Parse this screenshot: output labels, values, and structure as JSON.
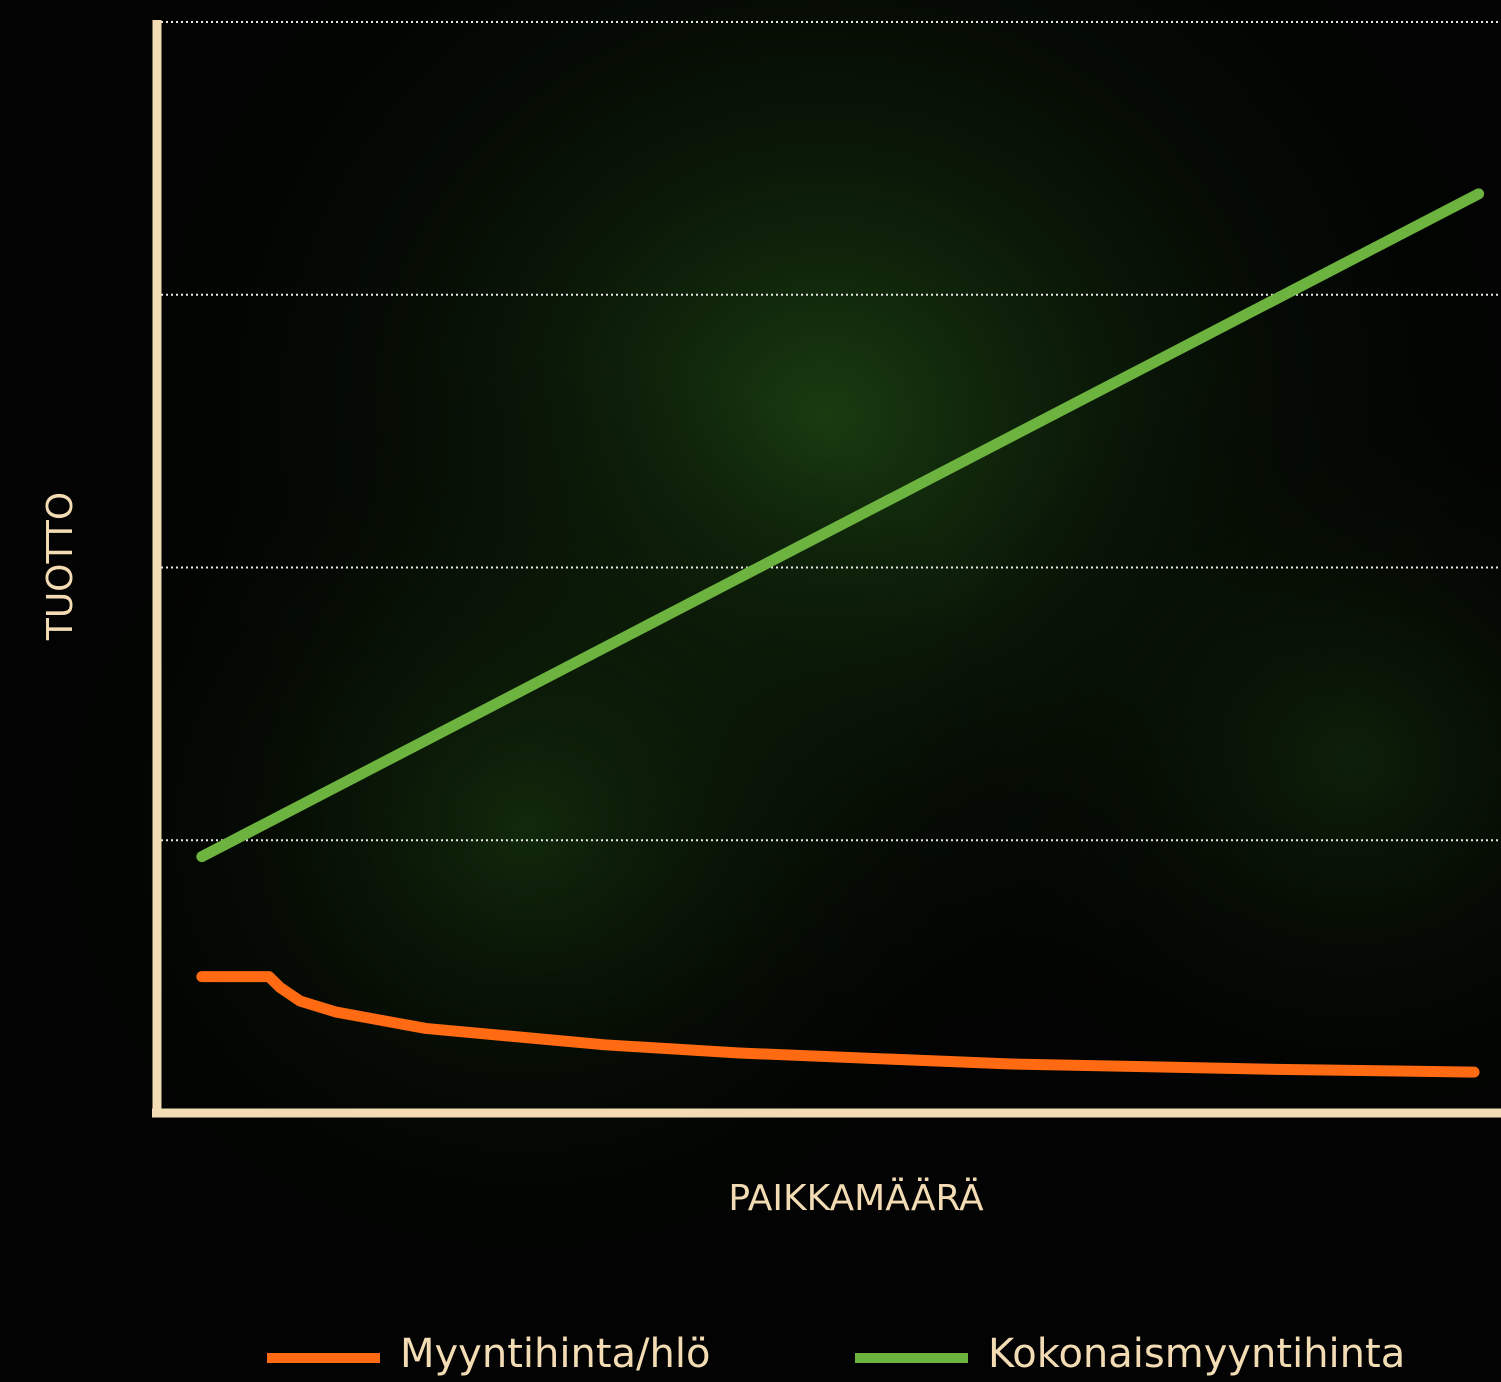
{
  "chart_data": {
    "type": "line",
    "xlabel": "PAIKKAMÄÄRÄ",
    "ylabel": "TUOTTO",
    "xlim": [
      0,
      30
    ],
    "ylim": [
      0,
      4
    ],
    "yticks": [
      1,
      2,
      3,
      4
    ],
    "grid": true,
    "series": [
      {
        "name": "Myyntihinta/hlö",
        "color": "#ff6a13",
        "x": [
          1,
          2.5,
          2.75,
          3.2,
          4,
          5,
          6,
          8,
          10,
          13,
          16,
          19,
          22,
          25,
          29.4
        ],
        "values": [
          0.5,
          0.5,
          0.46,
          0.41,
          0.37,
          0.34,
          0.31,
          0.28,
          0.25,
          0.22,
          0.2,
          0.18,
          0.17,
          0.16,
          0.15
        ]
      },
      {
        "name": "Kokonaismyyntihinta",
        "color": "#6db33f",
        "x": [
          1,
          29.5
        ],
        "values": [
          0.94,
          3.37
        ]
      }
    ]
  }
}
